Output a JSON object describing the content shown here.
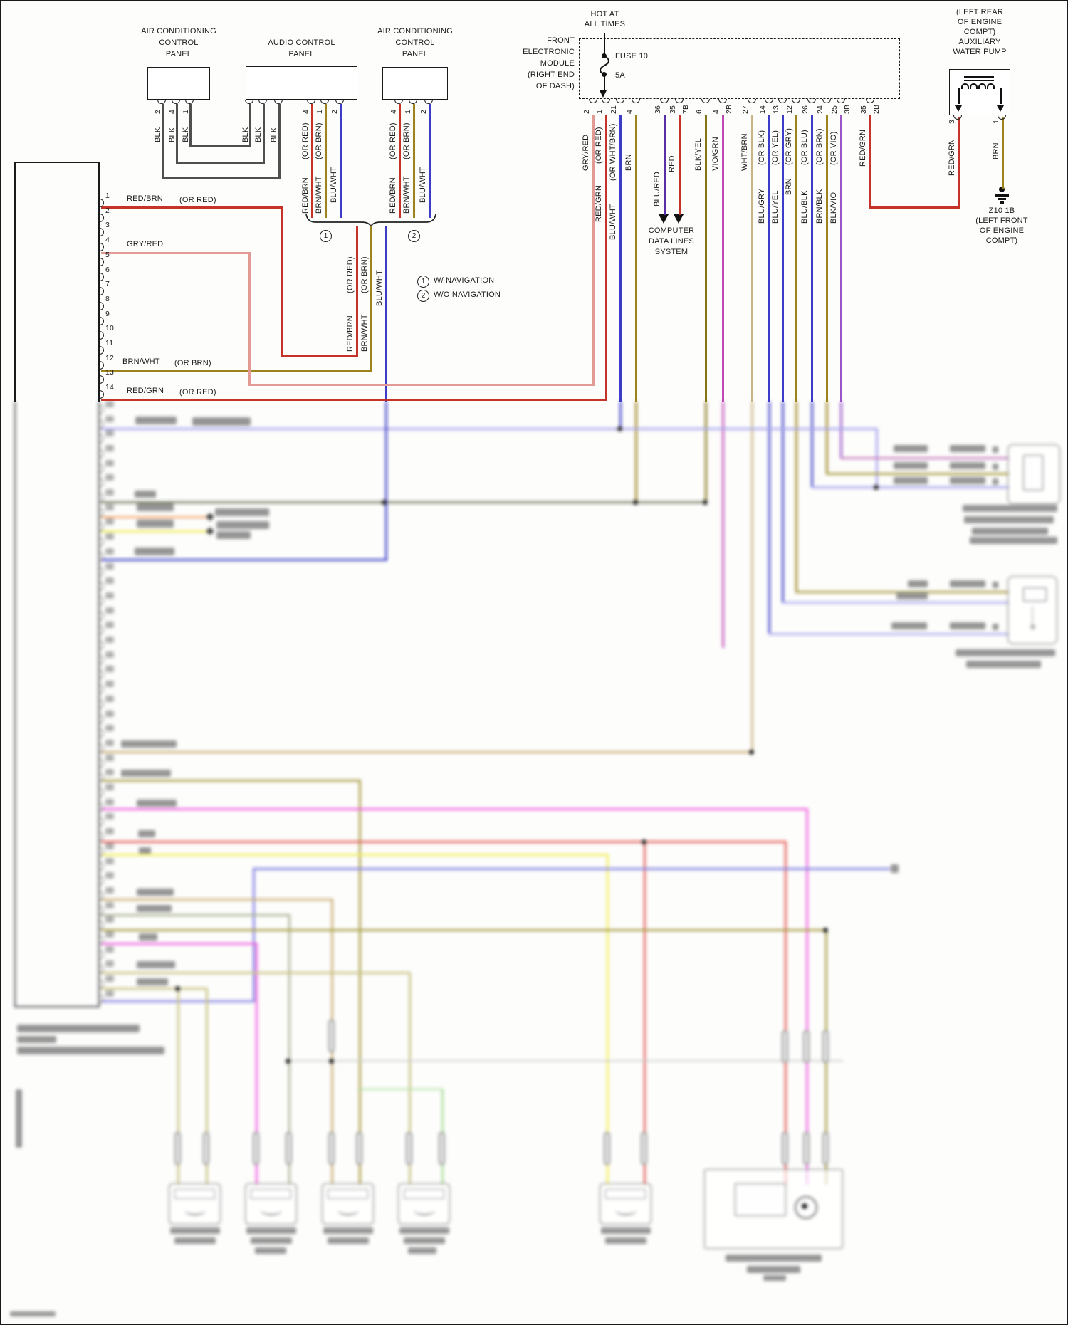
{
  "colors": {
    "red": "#c53228",
    "pink": "#e29a94",
    "olive": "#9c831c",
    "darkolive": "#837414",
    "blue": "#3c3cc8",
    "purple": "#5a2ea4",
    "magenta": "#c04ab4",
    "violet": "#9a55c8",
    "violetl": "#c87ec0",
    "tan": "#c9b583",
    "blk": "#4f4f4f",
    "lav": "#a2a0ec",
    "lavb": "#aeacee",
    "dark": "#6e7558",
    "orange": "#f2aa72",
    "yellowb": "#f0ee58",
    "brightpink": "#ee5fe0",
    "redb": "#e35a52",
    "tanb": "#c8ad72",
    "graygreen": "#a9b193",
    "oliveb": "#a69a40",
    "oliveyb": "#c6c07e",
    "lightgreen": "#a6dc96",
    "faint": "#c9c9c9",
    "blueb": "#7d7ae0"
  },
  "ac_panel": {
    "title": [
      "AIR CONDITIONING",
      "CONTROL",
      "PANEL"
    ],
    "pins": [
      "2",
      "4",
      "1"
    ],
    "wires": [
      "BLK",
      "BLK",
      "BLK"
    ]
  },
  "audio_panel": {
    "title": [
      "AUDIO CONTROL",
      "PANEL"
    ],
    "left_wires": [
      "BLK",
      "BLK",
      "BLK"
    ],
    "right_pins": [
      "4",
      "1",
      "2"
    ]
  },
  "ac_panel2": {
    "title": [
      "AIR CONDITIONING",
      "CONTROL",
      "PANEL"
    ],
    "pins": [
      "4",
      "1",
      "2"
    ]
  },
  "wire_set": {
    "w1": {
      "label": "RED/BRN",
      "alt": "(OR RED)"
    },
    "w2": {
      "label": "BRN/WHT",
      "alt": "(OR BRN)"
    },
    "w3": {
      "label": "BLU/WHT"
    }
  },
  "nav_legend": {
    "c1": "1",
    "c2": "2",
    "n1": "W/ NAVIGATION",
    "n2": "W/O NAVIGATION"
  },
  "left_block": {
    "pins": [
      "1",
      "2",
      "3",
      "4",
      "5",
      "6",
      "7",
      "8",
      "9",
      "10",
      "11",
      "12",
      "13",
      "14"
    ],
    "wire1": {
      "label": "RED/BRN",
      "alt": "(OR RED)"
    },
    "wire4": {
      "label": "GRY/RED"
    },
    "wire12": {
      "label": "BRN/WHT",
      "alt": "(OR BRN)"
    },
    "wire14": {
      "label": "RED/GRN",
      "alt": "(OR RED)"
    }
  },
  "fem": {
    "hot": [
      "HOT AT",
      "ALL TIMES"
    ],
    "name": [
      "FRONT",
      "ELECTRONIC",
      "MODULE",
      "(RIGHT END",
      "OF DASH)"
    ],
    "fuse": {
      "name": "FUSE 10",
      "rating": "5A"
    },
    "wires": [
      {
        "pin": "2",
        "label": "GRY/RED"
      },
      {
        "pin": "1",
        "label": "RED/GRN",
        "alt": "(OR RED)"
      },
      {
        "pin": "21",
        "label": "BLU/WHT",
        "alt": "(OR WHT/BRN)"
      },
      {
        "pin": "4",
        "label": "BRN"
      },
      {
        "pin": "36",
        "label": "BLU/RED"
      },
      {
        "pin": "35",
        "pin2": "7B",
        "label": "RED"
      },
      {
        "pin": "6",
        "label": "BLK/YEL"
      },
      {
        "pin": "4",
        "pin2": "2B",
        "label": "VIO/GRN"
      },
      {
        "pin": "27",
        "label": "WHT/BRN"
      },
      {
        "pin": "14",
        "label": "BLU/GRY",
        "alt": "(OR BLK)"
      },
      {
        "pin": "13",
        "label": "BLU/YEL",
        "alt": "(OR YEL)"
      },
      {
        "pin": "12",
        "label": "BRN",
        "alt": "(OR GRY)"
      },
      {
        "pin": "26",
        "label": "BLU/BLK",
        "alt": "(OR BLU)"
      },
      {
        "pin": "24",
        "label": "BRN/BLK",
        "alt": "(OR BRN)"
      },
      {
        "pin": "25",
        "pin2": "3B",
        "label": "BLK/VIO",
        "alt": "(OR VIO)"
      },
      {
        "pin": "35",
        "pin2": "2B",
        "label": "RED/GRN"
      }
    ]
  },
  "computer_data": [
    "COMPUTER",
    "DATA LINES",
    "SYSTEM"
  ],
  "water_pump": {
    "location": [
      "(LEFT REAR",
      "OF ENGINE",
      "COMPT)",
      "AUXILIARY",
      "WATER PUMP"
    ],
    "pin_left": {
      "n": "3",
      "label": "RED/GRN"
    },
    "pin_right": {
      "n": "1",
      "label": "BRN"
    },
    "ground": [
      "Z10 1B",
      "(LEFT FRONT",
      "OF ENGINE",
      "COMPT)"
    ]
  }
}
